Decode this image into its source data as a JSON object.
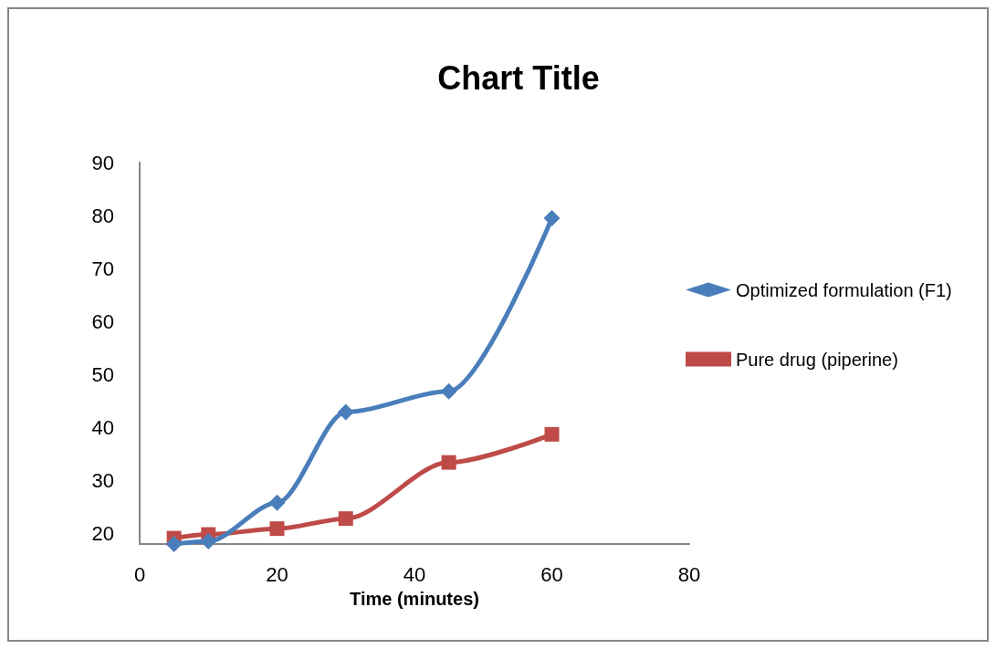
{
  "chart_data": {
    "type": "line",
    "title": "Chart Title",
    "xlabel": "Time (minutes)",
    "xlim": [
      0,
      80
    ],
    "xticks": [
      0,
      20,
      40,
      60,
      80
    ],
    "ylim": [
      18,
      90
    ],
    "yticks": [
      20,
      30,
      40,
      50,
      60,
      70,
      80,
      90
    ],
    "grid": false,
    "legend": "right",
    "line_style": "solid",
    "series": [
      {
        "name": "Optimized formulation (F1)",
        "color": "#4a7ebb",
        "marker": "diamond",
        "x": [
          5,
          10,
          20,
          30,
          45,
          60
        ],
        "values": [
          18,
          18.5,
          25.8,
          42.9,
          46.8,
          79.5
        ]
      },
      {
        "name": "Pure drug (piperine)",
        "color": "#be4b48",
        "marker": "square",
        "x": [
          5,
          10,
          20,
          30,
          45,
          60
        ],
        "values": [
          19.1,
          19.8,
          20.9,
          22.8,
          33.4,
          38.7
        ]
      }
    ]
  }
}
